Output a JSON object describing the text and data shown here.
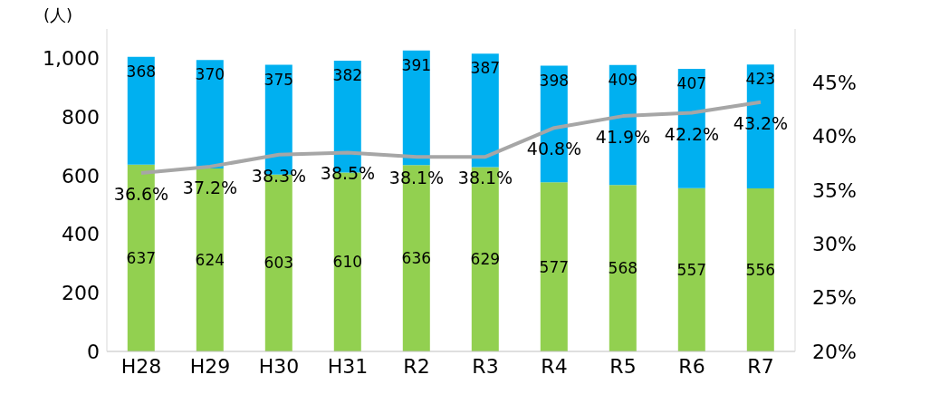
{
  "chart_data": {
    "type": "bar",
    "ylabel": "(人)",
    "categories": [
      "H28",
      "H29",
      "H30",
      "H31",
      "R2",
      "R3",
      "R4",
      "R5",
      "R6",
      "R7"
    ],
    "series": [
      {
        "color": "#92d050",
        "values": [
          637,
          624,
          603,
          610,
          636,
          629,
          577,
          568,
          557,
          556
        ]
      },
      {
        "color": "#00b0f0",
        "values": [
          368,
          370,
          375,
          382,
          391,
          387,
          398,
          409,
          407,
          423
        ]
      },
      {
        "type": "line",
        "axis": "y2",
        "color": "#a6a6a6",
        "values": [
          36.6,
          37.2,
          38.3,
          38.5,
          38.1,
          38.1,
          40.8,
          41.9,
          42.2,
          43.2
        ],
        "value_labels": [
          "36.6%",
          "37.2%",
          "38.3%",
          "38.5%",
          "38.1%",
          "38.1%",
          "40.8%",
          "41.9%",
          "42.2%",
          "43.2%"
        ]
      }
    ],
    "stacked": true,
    "data_labels": true,
    "ylim": [
      0,
      1100
    ],
    "yticks": [
      0,
      200,
      400,
      600,
      800,
      {
        "value": 1000,
        "label": "1,000"
      }
    ],
    "y2lim": [
      20,
      50
    ],
    "y2ticks": [
      {
        "value": 20,
        "label": "20%"
      },
      {
        "value": 25,
        "label": "25%"
      },
      {
        "value": 30,
        "label": "30%"
      },
      {
        "value": 35,
        "label": "35%"
      },
      {
        "value": 40,
        "label": "40%"
      },
      {
        "value": 45,
        "label": "45%"
      }
    ],
    "grid": false,
    "legend": false,
    "marker": "none"
  }
}
